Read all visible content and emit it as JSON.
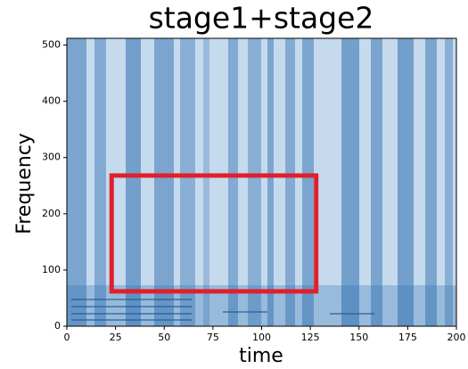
{
  "chart_data": {
    "type": "spectrogram",
    "title": "stage1+stage2",
    "x_label": "time",
    "y_label": "Frequency",
    "xlim": [
      0,
      200
    ],
    "ylim": [
      0,
      512
    ],
    "xticks": [
      0,
      25,
      50,
      75,
      100,
      125,
      150,
      175,
      200
    ],
    "yticks": [
      0,
      100,
      200,
      300,
      400,
      500
    ],
    "highlight": {
      "x": [
        23,
        128
      ],
      "y": [
        62,
        268
      ],
      "color": "#e0202a"
    }
  }
}
